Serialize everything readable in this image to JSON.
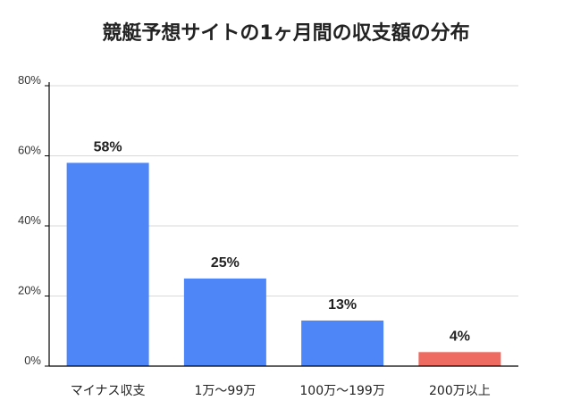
{
  "chart_data": {
    "type": "bar",
    "title": "競艇予想サイトの1ヶ月間の収支額の分布",
    "xlabel": "",
    "ylabel": "",
    "categories": [
      "マイナス収支",
      "1万〜99万",
      "100万〜199万",
      "200万以上"
    ],
    "values": [
      58,
      25,
      13,
      4
    ],
    "data_labels": [
      "58%",
      "25%",
      "13%",
      "4%"
    ],
    "ylim": [
      0,
      80
    ],
    "yticks": [
      0,
      20,
      40,
      60,
      80
    ],
    "ytick_labels": [
      "0%",
      "20%",
      "40%",
      "60%",
      "80%"
    ],
    "grid": true,
    "legend": "none",
    "colors": [
      "#4f86f7",
      "#4f86f7",
      "#4f86f7",
      "#ee6b62"
    ],
    "grid_color": "#d9d9d9",
    "axis_color": "#000000"
  }
}
